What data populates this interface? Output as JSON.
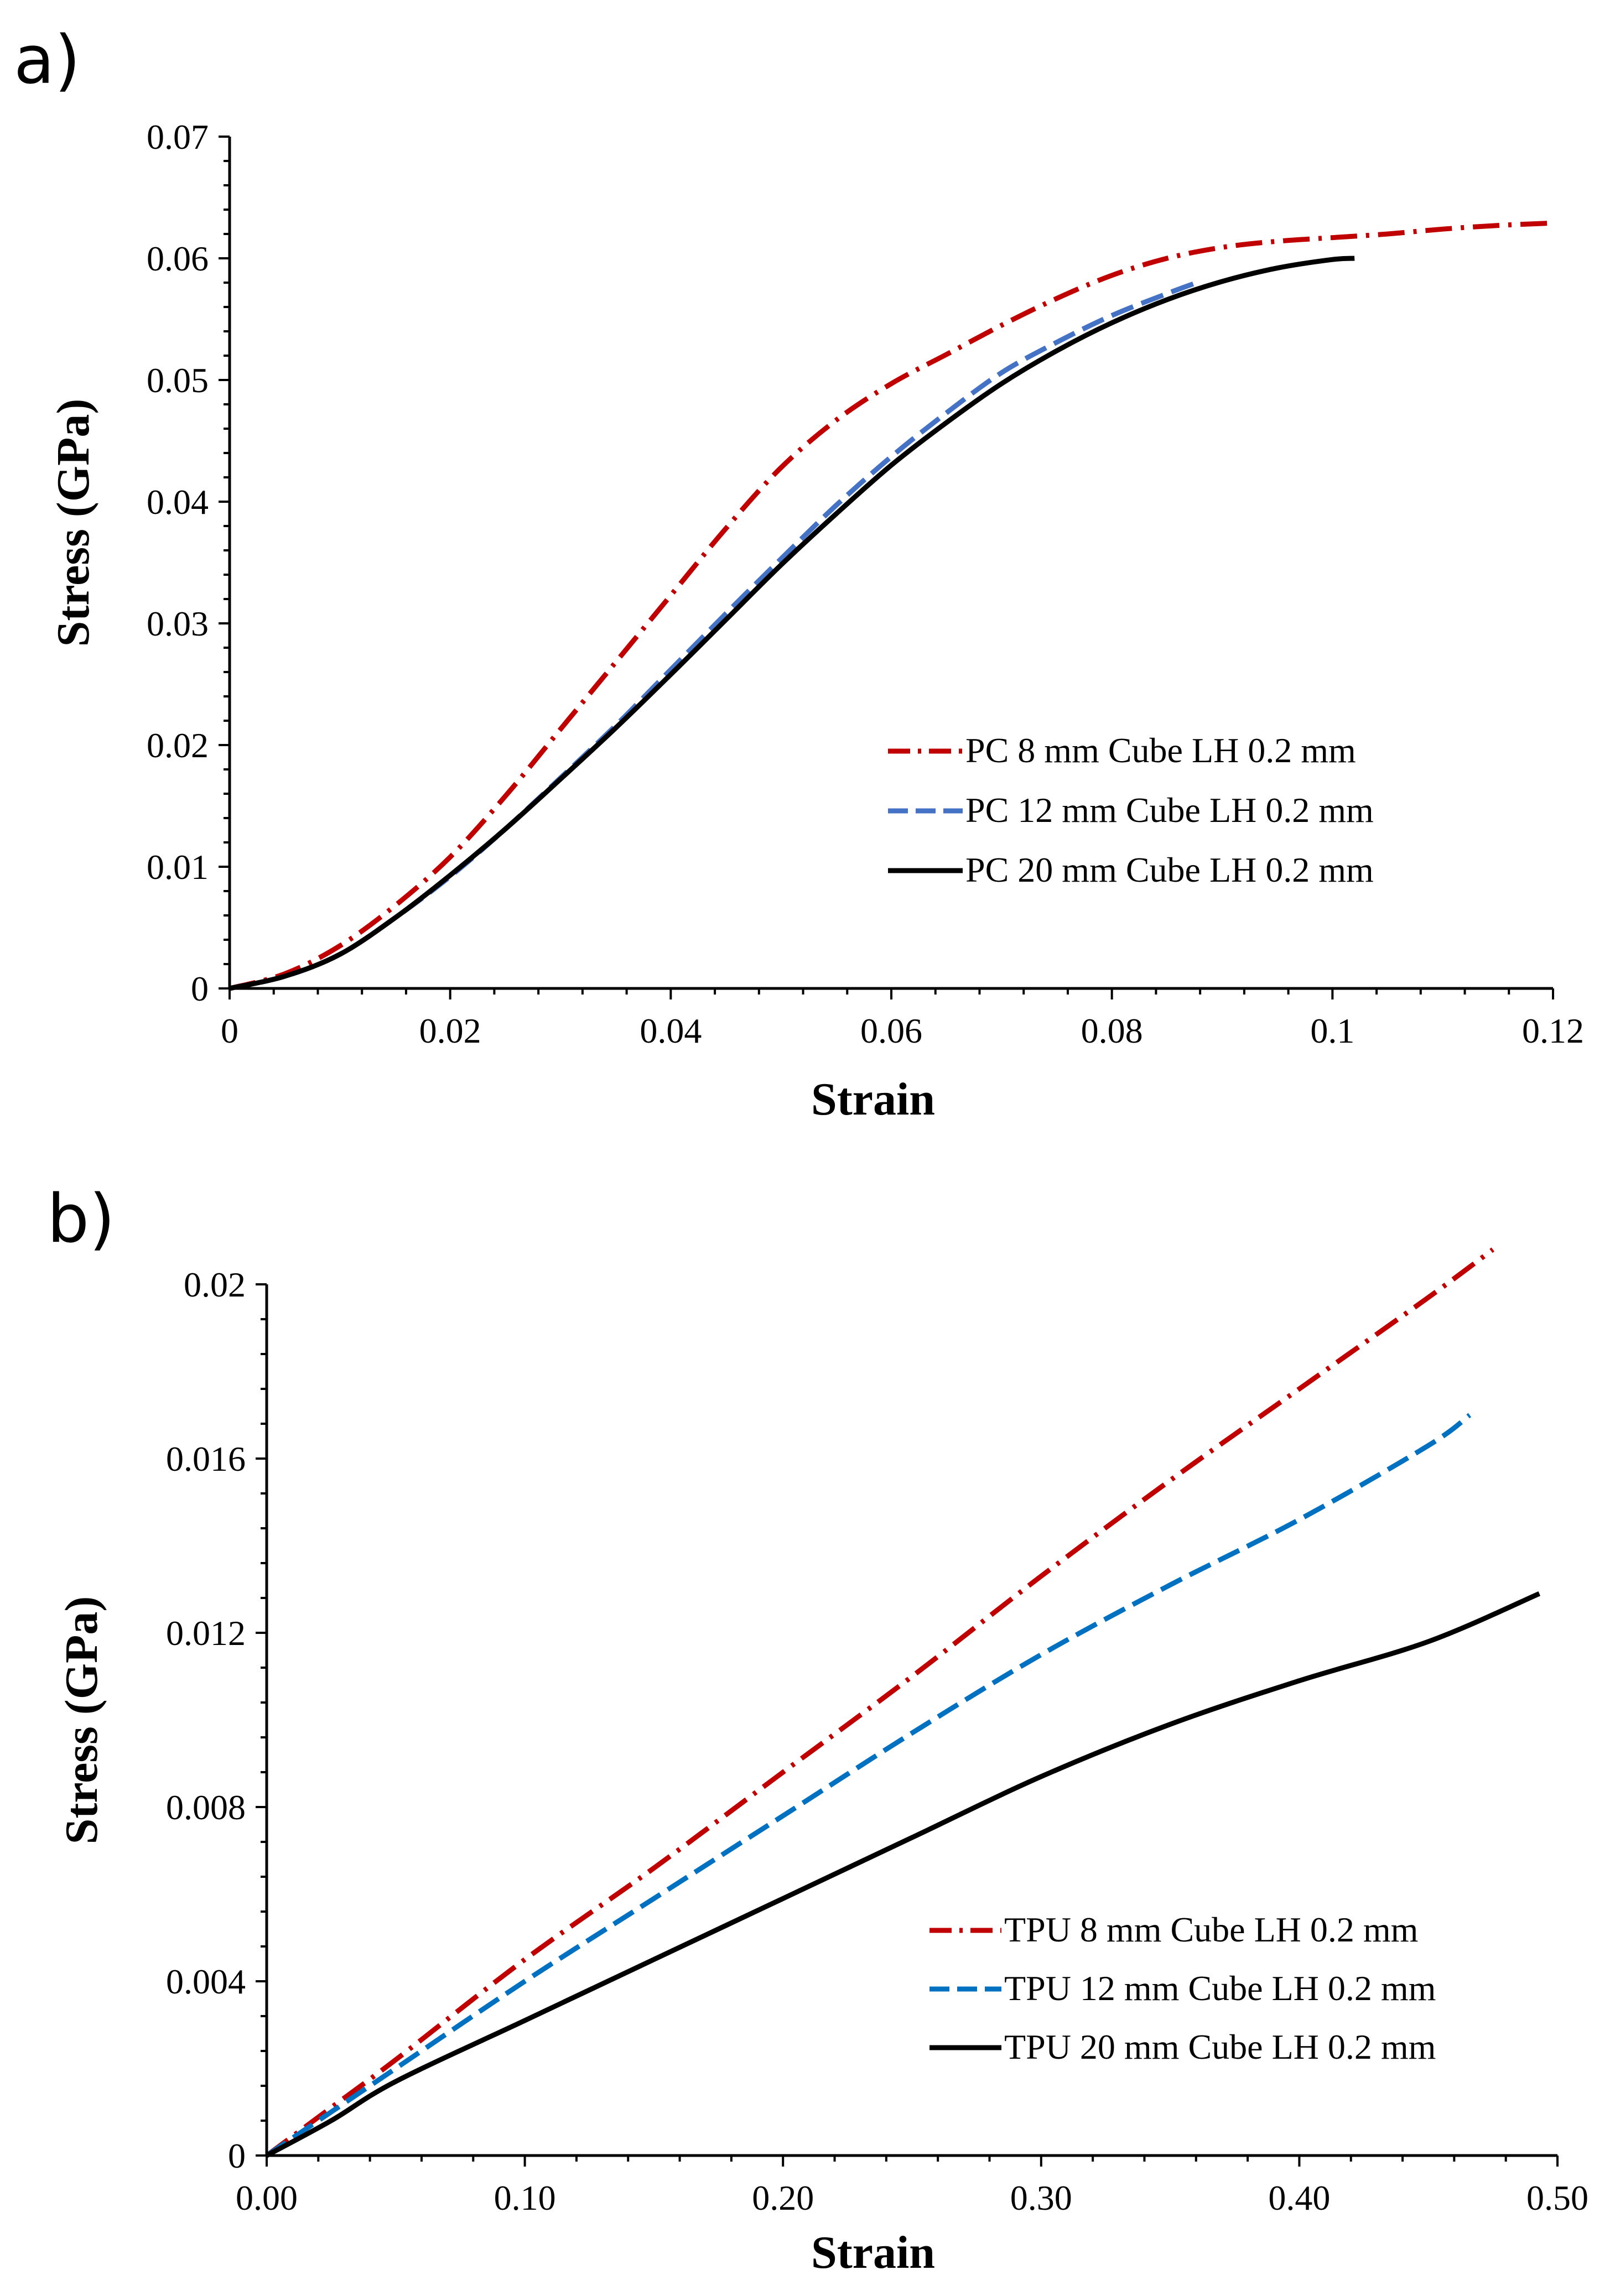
{
  "chart_data": [
    {
      "panel_label": "a)",
      "type": "line",
      "xlabel": "Strain",
      "ylabel": "Stress (GPa)",
      "xlim": [
        0,
        0.12
      ],
      "ylim": [
        0,
        0.07
      ],
      "x_ticks": [
        "0",
        "0.02",
        "0.04",
        "0.06",
        "0.08",
        "0.1",
        "0.12"
      ],
      "y_ticks": [
        "0",
        "0.01",
        "0.02",
        "0.03",
        "0.04",
        "0.05",
        "0.06",
        "0.07"
      ],
      "grid": false,
      "legend_position": "bottom-right",
      "series": [
        {
          "name": "PC 8 mm Cube LH 0.2 mm",
          "color": "#c00000",
          "style": "dash-dot",
          "x": [
            0,
            0.005,
            0.01,
            0.015,
            0.02,
            0.025,
            0.03,
            0.035,
            0.04,
            0.045,
            0.05,
            0.055,
            0.06,
            0.065,
            0.07,
            0.075,
            0.08,
            0.085,
            0.09,
            0.095,
            0.1,
            0.105,
            0.11,
            0.115,
            0.12
          ],
          "y": [
            0,
            0.0012,
            0.0035,
            0.0068,
            0.0108,
            0.0158,
            0.0213,
            0.0268,
            0.0323,
            0.0378,
            0.0428,
            0.0467,
            0.0497,
            0.0521,
            0.0545,
            0.0567,
            0.0586,
            0.06,
            0.0609,
            0.0614,
            0.0617,
            0.062,
            0.0624,
            0.0627,
            0.0629
          ]
        },
        {
          "name": "PC 12 mm Cube LH 0.2 mm",
          "color": "#4472c4",
          "style": "dashed",
          "x": [
            0,
            0.005,
            0.01,
            0.015,
            0.02,
            0.025,
            0.03,
            0.035,
            0.04,
            0.045,
            0.05,
            0.055,
            0.06,
            0.065,
            0.07,
            0.075,
            0.08,
            0.085,
            0.088
          ],
          "y": [
            0,
            0.001,
            0.0028,
            0.0058,
            0.0092,
            0.0131,
            0.0173,
            0.0216,
            0.0262,
            0.0308,
            0.0353,
            0.0397,
            0.0437,
            0.0473,
            0.0506,
            0.0531,
            0.0553,
            0.0571,
            0.0581
          ]
        },
        {
          "name": "PC 20 mm Cube LH 0.2 mm",
          "color": "#000000",
          "style": "solid",
          "x": [
            0,
            0.005,
            0.01,
            0.015,
            0.02,
            0.025,
            0.03,
            0.035,
            0.04,
            0.045,
            0.05,
            0.055,
            0.06,
            0.065,
            0.07,
            0.075,
            0.08,
            0.085,
            0.09,
            0.095,
            0.1,
            0.102
          ],
          "y": [
            0,
            0.001,
            0.0028,
            0.0058,
            0.0093,
            0.0131,
            0.0172,
            0.0214,
            0.0258,
            0.0303,
            0.0348,
            0.039,
            0.043,
            0.0465,
            0.0497,
            0.0524,
            0.0547,
            0.0566,
            0.0581,
            0.0592,
            0.0599,
            0.06
          ]
        }
      ]
    },
    {
      "panel_label": "b)",
      "type": "line",
      "xlabel": "Strain",
      "ylabel": "Stress (GPa)",
      "xlim": [
        0,
        0.5
      ],
      "ylim": [
        0,
        0.02
      ],
      "x_ticks": [
        "0.00",
        "0.10",
        "0.20",
        "0.30",
        "0.40",
        "0.50"
      ],
      "y_ticks": [
        "0",
        "0.004",
        "0.008",
        "0.012",
        "0.016",
        "0.02"
      ],
      "grid": false,
      "legend_position": "bottom-right",
      "series": [
        {
          "name": "TPU 8 mm Cube LH 0.2 mm",
          "color": "#c00000",
          "style": "dash-dot",
          "x": [
            0,
            0.025,
            0.05,
            0.1,
            0.15,
            0.2,
            0.25,
            0.3,
            0.35,
            0.4,
            0.45,
            0.475
          ],
          "y": [
            0,
            0.0011,
            0.0022,
            0.0045,
            0.0066,
            0.0088,
            0.011,
            0.0133,
            0.0155,
            0.0176,
            0.0197,
            0.0208
          ]
        },
        {
          "name": "TPU 12 mm Cube LH 0.2 mm",
          "color": "#0070c0",
          "style": "dashed",
          "x": [
            0,
            0.025,
            0.05,
            0.1,
            0.15,
            0.2,
            0.25,
            0.3,
            0.35,
            0.4,
            0.45,
            0.466
          ],
          "y": [
            0,
            0.001,
            0.002,
            0.004,
            0.0059,
            0.0078,
            0.0097,
            0.0115,
            0.0131,
            0.0146,
            0.0163,
            0.017
          ]
        },
        {
          "name": "TPU 20 mm Cube LH 0.2 mm",
          "color": "#000000",
          "style": "solid",
          "x": [
            0,
            0.025,
            0.05,
            0.1,
            0.15,
            0.2,
            0.25,
            0.3,
            0.35,
            0.4,
            0.45,
            0.493
          ],
          "y": [
            0,
            0.0008,
            0.0017,
            0.0031,
            0.0045,
            0.0059,
            0.0073,
            0.0087,
            0.0099,
            0.0109,
            0.0118,
            0.0129
          ]
        }
      ]
    }
  ]
}
